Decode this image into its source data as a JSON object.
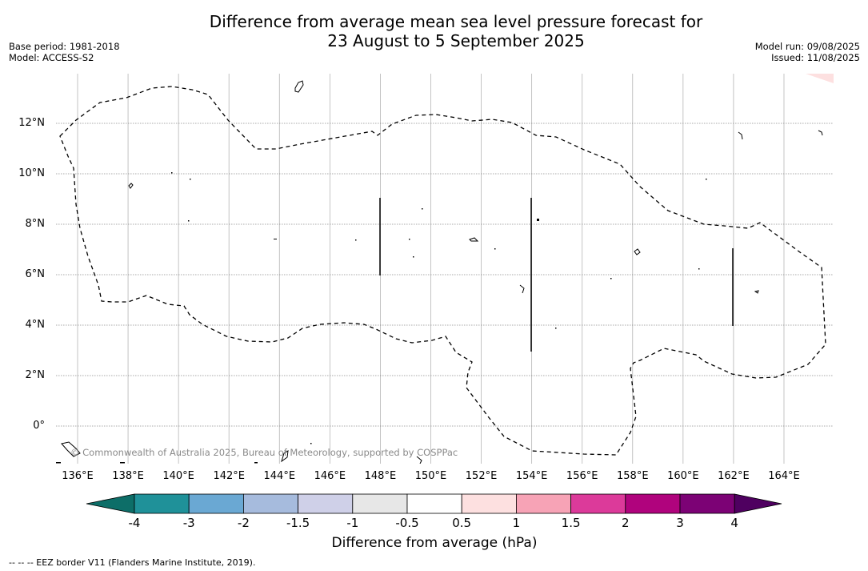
{
  "title_line1": "Difference from average mean sea level pressure forecast for",
  "title_line2": "23 August to 5 September 2025",
  "base_period": "Base period: 1981-2018",
  "model": "Model: ACCESS-S2",
  "model_run": "Model run: 09/08/2025",
  "issued": "Issued: 11/08/2025",
  "lat_labels": [
    "12°N",
    "10°N",
    "8°N",
    "6°N",
    "4°N",
    "2°N",
    "0°"
  ],
  "lon_labels": [
    "136°E",
    "138°E",
    "140°E",
    "142°E",
    "144°E",
    "146°E",
    "148°E",
    "150°E",
    "152°E",
    "154°E",
    "156°E",
    "158°E",
    "160°E",
    "162°E",
    "164°E"
  ],
  "copyright": "© Commonwealth of Australia 2025, Bureau of Meteorology, supported by COSPPac",
  "colorbar": {
    "title": "Difference from average (hPa)",
    "labels": [
      "-4",
      "-3",
      "-2",
      "-1.5",
      "-1",
      "-0.5",
      "0.5",
      "1",
      "1.5",
      "2",
      "3",
      "4"
    ],
    "colors": [
      "#1f9199",
      "#6aa8d3",
      "#a6bbdd",
      "#cfd0e8",
      "#e7e7e7",
      "#ffffff",
      "#fde0e0",
      "#f7a3b6",
      "#dc3a9a",
      "#b0037d",
      "#7c0275"
    ],
    "under_color": "#0d6e68",
    "over_color": "#4f0060"
  },
  "footer": "--  --  -- EEZ border V11 (Flanders Marine Institute, 2019)."
}
